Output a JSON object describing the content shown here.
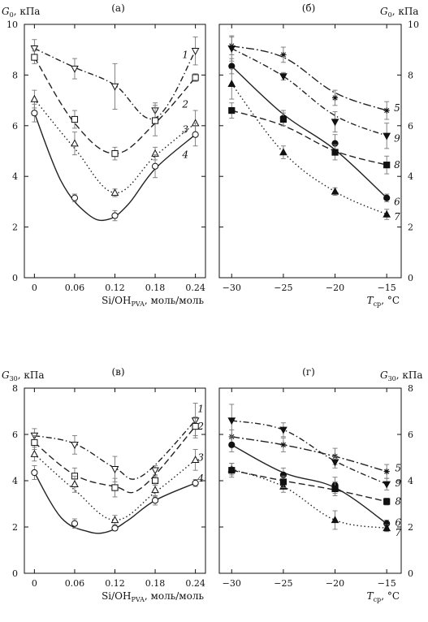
{
  "chart_data": [
    {
      "type": "line",
      "panel": "(а)",
      "ylabel": "G",
      "ylabel_sub": "0",
      "ylabel_unit": ", кПа",
      "xlabel": "Si/OH",
      "xlabel_sub": "PVA",
      "xlabel_unit": ", моль/моль",
      "x_ticks": [
        "0",
        "0.06",
        "0.12",
        "0.18",
        "0.24"
      ],
      "y_ticks": [
        "0",
        "2",
        "4",
        "6",
        "8",
        "10"
      ],
      "xlim": [
        -0.015,
        0.255
      ],
      "ylim": [
        0,
        10
      ],
      "yaxis_side": "left",
      "series": [
        {
          "name": "1",
          "marker": "triangle-down-open",
          "dash": "dashdot",
          "color": "#222222",
          "x": [
            0,
            0.06,
            0.12,
            0.18,
            0.24
          ],
          "y": [
            9.05,
            8.25,
            7.55,
            6.6,
            8.95
          ],
          "err": [
            0.35,
            0.4,
            0.9,
            0.3,
            0.55
          ],
          "curve": [
            [
              0,
              9.05
            ],
            [
              0.06,
              8.3
            ],
            [
              0.12,
              7.6
            ],
            [
              0.18,
              6.3
            ],
            [
              0.24,
              8.95
            ]
          ]
        },
        {
          "name": "2",
          "marker": "square-open",
          "dash": "dashed",
          "color": "#222222",
          "x": [
            0,
            0.06,
            0.12,
            0.18,
            0.24
          ],
          "y": [
            8.7,
            6.25,
            4.9,
            6.2,
            7.9
          ],
          "err": [
            0.25,
            0.35,
            0.25,
            0.6,
            0.15
          ],
          "curve": [
            [
              0,
              8.7
            ],
            [
              0.06,
              6.1
            ],
            [
              0.12,
              4.9
            ],
            [
              0.18,
              6.1
            ],
            [
              0.24,
              7.9
            ]
          ]
        },
        {
          "name": "3",
          "marker": "triangle-up-open",
          "dash": "dotted",
          "color": "#222222",
          "x": [
            0,
            0.06,
            0.12,
            0.18,
            0.24
          ],
          "y": [
            7.05,
            5.3,
            3.35,
            4.9,
            6.1
          ],
          "err": [
            0.35,
            0.45,
            0.15,
            0.25,
            0.5
          ],
          "curve": [
            [
              0,
              7.05
            ],
            [
              0.06,
              5.1
            ],
            [
              0.12,
              3.35
            ],
            [
              0.18,
              4.8
            ],
            [
              0.24,
              6.1
            ]
          ]
        },
        {
          "name": "4",
          "marker": "circle-open",
          "dash": "solid",
          "color": "#222222",
          "x": [
            0,
            0.06,
            0.12,
            0.18,
            0.24
          ],
          "y": [
            6.5,
            3.15,
            2.45,
            4.4,
            5.65
          ],
          "err": [
            0.35,
            0.15,
            0.2,
            0.45,
            0.45
          ],
          "curve": [
            [
              0,
              6.5
            ],
            [
              0.04,
              3.8
            ],
            [
              0.08,
              2.5
            ],
            [
              0.11,
              2.3
            ],
            [
              0.14,
              2.9
            ],
            [
              0.18,
              4.3
            ],
            [
              0.24,
              5.65
            ]
          ]
        }
      ],
      "curve_labels": [
        {
          "text": "1",
          "x": 0.225,
          "y": 8.8
        },
        {
          "text": "2",
          "x": 0.225,
          "y": 6.85
        },
        {
          "text": "3",
          "x": 0.225,
          "y": 5.85
        },
        {
          "text": "4",
          "x": 0.225,
          "y": 4.85
        }
      ]
    },
    {
      "type": "line",
      "panel": "(б)",
      "ylabel": "G",
      "ylabel_sub": "0",
      "ylabel_unit": ", кПа",
      "xlabel": "T",
      "xlabel_sub": "ср",
      "xlabel_unit": ", °C",
      "x_ticks": [
        "−30",
        "−25",
        "−20",
        "−15"
      ],
      "y_ticks": [
        "0",
        "2",
        "4",
        "6",
        "8",
        "10"
      ],
      "xlim": [
        -31.2,
        -13.6
      ],
      "ylim": [
        0,
        10
      ],
      "yaxis_side": "right",
      "series": [
        {
          "name": "5",
          "marker": "star",
          "dash": "dashdot-long",
          "color": "#222222",
          "x": [
            -30,
            -25,
            -20,
            -15
          ],
          "y": [
            9.15,
            8.8,
            7.1,
            6.6
          ],
          "err": [
            0.35,
            0.3,
            0.3,
            0.35
          ],
          "curve": [
            [
              -30,
              9.15
            ],
            [
              -25,
              8.7
            ],
            [
              -20,
              7.3
            ],
            [
              -15,
              6.6
            ]
          ]
        },
        {
          "name": "6",
          "marker": "circle-filled",
          "dash": "solid",
          "color": "#222222",
          "x": [
            -30,
            -25,
            -20,
            -15
          ],
          "y": [
            8.35,
            6.3,
            5.3,
            3.15
          ],
          "err": [
            0.3,
            0.3,
            0.35,
            0.15
          ],
          "curve": [
            [
              -30,
              8.35
            ],
            [
              -25,
              6.45
            ],
            [
              -20,
              5.05
            ],
            [
              -15,
              3.15
            ]
          ]
        },
        {
          "name": "7",
          "marker": "triangle-up-filled",
          "dash": "dotted",
          "color": "#222222",
          "x": [
            -30,
            -25,
            -20,
            -15
          ],
          "y": [
            7.65,
            4.95,
            3.4,
            2.5
          ],
          "err": [
            0.6,
            0.25,
            0.15,
            0.2
          ],
          "curve": [
            [
              -30,
              7.65
            ],
            [
              -25,
              4.95
            ],
            [
              -20,
              3.4
            ],
            [
              -15,
              2.5
            ]
          ]
        },
        {
          "name": "8",
          "marker": "square-filled",
          "dash": "dashed",
          "color": "#222222",
          "x": [
            -30,
            -25,
            -20,
            -15
          ],
          "y": [
            6.6,
            6.25,
            4.95,
            4.45
          ],
          "err": [
            0.3,
            0.25,
            0.3,
            0.35
          ],
          "curve": [
            [
              -30,
              6.6
            ],
            [
              -25,
              6.0
            ],
            [
              -20,
              5.0
            ],
            [
              -15,
              4.45
            ]
          ]
        },
        {
          "name": "9",
          "marker": "triangle-down-filled",
          "dash": "dashdot",
          "color": "#222222",
          "x": [
            -30,
            -25,
            -20,
            -15
          ],
          "y": [
            9.05,
            7.95,
            6.15,
            5.6
          ],
          "err": [
            0.5,
            0.15,
            0.4,
            0.5
          ],
          "curve": [
            [
              -30,
              9.05
            ],
            [
              -25,
              7.95
            ],
            [
              -20,
              6.4
            ],
            [
              -15,
              5.6
            ]
          ]
        }
      ],
      "curve_labels": [
        {
          "text": "5",
          "x": -14.0,
          "y": 6.7
        },
        {
          "text": "9",
          "x": -14.0,
          "y": 5.5
        },
        {
          "text": "8",
          "x": -14.0,
          "y": 4.45
        },
        {
          "text": "6",
          "x": -14.0,
          "y": 3.0
        },
        {
          "text": "7",
          "x": -14.0,
          "y": 2.4
        }
      ]
    },
    {
      "type": "line",
      "panel": "(в)",
      "ylabel": "G",
      "ylabel_sub": "30",
      "ylabel_unit": ", кПа",
      "xlabel": "Si/OH",
      "xlabel_sub": "PVA",
      "xlabel_unit": ", моль/моль",
      "x_ticks": [
        "0",
        "0.06",
        "0.12",
        "0.18",
        "0.24"
      ],
      "y_ticks": [
        "0",
        "2",
        "4",
        "6",
        "8"
      ],
      "xlim": [
        -0.015,
        0.255
      ],
      "ylim": [
        0,
        8
      ],
      "yaxis_side": "left",
      "series": [
        {
          "name": "1",
          "marker": "triangle-down-open",
          "dash": "dashdot",
          "color": "#222222",
          "x": [
            0,
            0.06,
            0.12,
            0.18,
            0.24
          ],
          "y": [
            5.95,
            5.55,
            4.5,
            4.45,
            6.6
          ],
          "err": [
            0.3,
            0.4,
            0.55,
            0.2,
            0.75
          ],
          "curve": [
            [
              0,
              5.95
            ],
            [
              0.06,
              5.6
            ],
            [
              0.12,
              4.55
            ],
            [
              0.16,
              4.2
            ],
            [
              0.24,
              6.6
            ]
          ]
        },
        {
          "name": "2",
          "marker": "square-open",
          "dash": "dashed",
          "color": "#222222",
          "x": [
            0,
            0.06,
            0.12,
            0.18,
            0.24
          ],
          "y": [
            5.65,
            4.2,
            3.7,
            4.0,
            6.35
          ],
          "err": [
            0.3,
            0.35,
            0.4,
            0.2,
            0.4
          ],
          "curve": [
            [
              0,
              5.65
            ],
            [
              0.06,
              4.25
            ],
            [
              0.12,
              3.75
            ],
            [
              0.16,
              3.7
            ],
            [
              0.24,
              6.35
            ]
          ]
        },
        {
          "name": "3",
          "marker": "triangle-up-open",
          "dash": "dotted",
          "color": "#222222",
          "x": [
            0,
            0.06,
            0.12,
            0.18,
            0.24
          ],
          "y": [
            5.15,
            3.85,
            2.3,
            3.6,
            4.9
          ],
          "err": [
            0.3,
            0.35,
            0.2,
            0.3,
            0.45
          ],
          "curve": [
            [
              0,
              5.15
            ],
            [
              0.06,
              3.6
            ],
            [
              0.12,
              2.3
            ],
            [
              0.18,
              3.5
            ],
            [
              0.24,
              4.9
            ]
          ]
        },
        {
          "name": "4",
          "marker": "circle-open",
          "dash": "solid",
          "color": "#222222",
          "x": [
            0,
            0.06,
            0.12,
            0.18,
            0.24
          ],
          "y": [
            4.35,
            2.15,
            1.95,
            3.15,
            3.9
          ],
          "err": [
            0.3,
            0.2,
            0.1,
            0.2,
            0.15
          ],
          "curve": [
            [
              0,
              4.35
            ],
            [
              0.04,
              2.4
            ],
            [
              0.08,
              1.8
            ],
            [
              0.11,
              1.8
            ],
            [
              0.14,
              2.3
            ],
            [
              0.18,
              3.15
            ],
            [
              0.24,
              3.9
            ]
          ]
        }
      ],
      "curve_labels": [
        {
          "text": "1",
          "x": 0.248,
          "y": 7.1
        },
        {
          "text": "2",
          "x": 0.248,
          "y": 6.35
        },
        {
          "text": "3",
          "x": 0.248,
          "y": 5.0
        },
        {
          "text": "4",
          "x": 0.248,
          "y": 4.1
        }
      ]
    },
    {
      "type": "line",
      "panel": "(г)",
      "ylabel": "G",
      "ylabel_sub": "30",
      "ylabel_unit": ", кПа",
      "xlabel": "T",
      "xlabel_sub": "ср",
      "xlabel_unit": ", °C",
      "x_ticks": [
        "−30",
        "−25",
        "−20",
        "−15"
      ],
      "y_ticks": [
        "0",
        "2",
        "4",
        "6",
        "8"
      ],
      "xlim": [
        -31.2,
        -13.6
      ],
      "ylim": [
        0,
        8
      ],
      "yaxis_side": "right",
      "series": [
        {
          "name": "5",
          "marker": "star",
          "dash": "dashdot-long",
          "color": "#222222",
          "x": [
            -30,
            -25,
            -20,
            -15
          ],
          "y": [
            5.9,
            5.55,
            5.05,
            4.4
          ],
          "err": [
            0.3,
            0.3,
            0.35,
            0.3
          ],
          "curve": [
            [
              -30,
              5.9
            ],
            [
              -25,
              5.55
            ],
            [
              -20,
              5.05
            ],
            [
              -15,
              4.4
            ]
          ]
        },
        {
          "name": "6",
          "marker": "circle-filled",
          "dash": "solid",
          "color": "#222222",
          "x": [
            -30,
            -25,
            -20,
            -15
          ],
          "y": [
            5.55,
            4.25,
            3.8,
            2.15
          ],
          "err": [
            0.3,
            0.3,
            0.35,
            0.15
          ],
          "curve": [
            [
              -30,
              5.55
            ],
            [
              -25,
              4.35
            ],
            [
              -20,
              3.7
            ],
            [
              -15,
              2.15
            ]
          ]
        },
        {
          "name": "7",
          "marker": "triangle-up-filled",
          "dash": "dotted",
          "color": "#222222",
          "x": [
            -30,
            -25,
            -20,
            -15
          ],
          "y": [
            4.5,
            3.75,
            2.3,
            1.95
          ],
          "err": [
            0.25,
            0.25,
            0.4,
            0.15
          ],
          "curve": [
            [
              -30,
              4.5
            ],
            [
              -25,
              3.75
            ],
            [
              -20,
              2.3
            ],
            [
              -15,
              1.95
            ]
          ]
        },
        {
          "name": "8",
          "marker": "square-filled",
          "dash": "dashed",
          "color": "#222222",
          "x": [
            -30,
            -25,
            -20,
            -15
          ],
          "y": [
            4.45,
            3.95,
            3.65,
            3.1
          ],
          "err": [
            0.3,
            0.25,
            0.3,
            0.15
          ],
          "curve": [
            [
              -30,
              4.45
            ],
            [
              -25,
              4.0
            ],
            [
              -20,
              3.6
            ],
            [
              -15,
              3.1
            ]
          ]
        },
        {
          "name": "9",
          "marker": "triangle-down-filled",
          "dash": "dashdot",
          "color": "#222222",
          "x": [
            -30,
            -25,
            -20,
            -15
          ],
          "y": [
            6.6,
            6.2,
            4.8,
            3.85
          ],
          "err": [
            0.7,
            0.3,
            0.25,
            0.25
          ],
          "curve": [
            [
              -30,
              6.6
            ],
            [
              -25,
              6.2
            ],
            [
              -20,
              4.85
            ],
            [
              -15,
              3.85
            ]
          ]
        }
      ],
      "curve_labels": [
        {
          "text": "5",
          "x": -13.9,
          "y": 4.55
        },
        {
          "text": "9",
          "x": -13.9,
          "y": 3.9
        },
        {
          "text": "8",
          "x": -13.9,
          "y": 3.1
        },
        {
          "text": "6",
          "x": -13.9,
          "y": 2.2
        },
        {
          "text": "7",
          "x": -13.9,
          "y": 1.75
        }
      ]
    }
  ]
}
